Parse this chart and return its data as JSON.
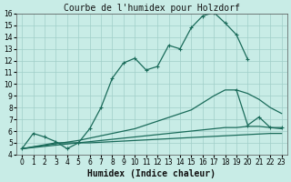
{
  "title": "Courbe de l'humidex pour Holzdorf",
  "xlabel": "Humidex (Indice chaleur)",
  "xlim": [
    -0.5,
    23.5
  ],
  "ylim": [
    4,
    16
  ],
  "xticks": [
    0,
    1,
    2,
    3,
    4,
    5,
    6,
    7,
    8,
    9,
    10,
    11,
    12,
    13,
    14,
    15,
    16,
    17,
    18,
    19,
    20,
    21,
    22,
    23
  ],
  "yticks": [
    4,
    5,
    6,
    7,
    8,
    9,
    10,
    11,
    12,
    13,
    14,
    15,
    16
  ],
  "bg_color": "#c8ece6",
  "grid_color": "#a0cfc8",
  "line_color": "#1a6b5a",
  "title_fontsize": 7,
  "tick_fontsize": 5.5,
  "label_fontsize": 7,
  "curve_main": {
    "x": [
      0,
      1,
      2,
      3,
      4,
      5,
      6,
      7,
      8,
      9,
      10,
      11,
      12,
      13,
      14,
      15,
      16,
      17,
      18,
      19,
      20
    ],
    "y": [
      4.5,
      5.8,
      5.5,
      5.1,
      4.5,
      5.0,
      6.2,
      8.0,
      10.5,
      11.8,
      12.2,
      11.2,
      11.5,
      13.3,
      13.0,
      14.8,
      15.8,
      16.1,
      15.2,
      14.2,
      12.1
    ]
  },
  "curve_tail": {
    "x": [
      19,
      20,
      21,
      22,
      23
    ],
    "y": [
      9.5,
      6.5,
      7.2,
      6.3,
      6.3
    ]
  },
  "curve_mid": {
    "x": [
      0,
      5,
      10,
      15,
      17,
      18,
      19,
      20,
      21,
      22,
      23
    ],
    "y": [
      4.5,
      5.2,
      6.2,
      7.8,
      9.0,
      9.5,
      9.5,
      9.2,
      8.7,
      8.0,
      7.5
    ]
  },
  "curve_low": {
    "x": [
      0,
      5,
      10,
      15,
      18,
      19,
      20,
      21,
      22,
      23
    ],
    "y": [
      4.5,
      5.0,
      5.5,
      6.0,
      6.3,
      6.3,
      6.4,
      6.4,
      6.3,
      6.2
    ]
  },
  "curve_flat": {
    "x": [
      0,
      3,
      4,
      5,
      6,
      7,
      8,
      9,
      10,
      11,
      12,
      13,
      14,
      15,
      16,
      17,
      18,
      19,
      20,
      21,
      22,
      23
    ],
    "y": [
      4.5,
      5.0,
      5.0,
      5.0,
      5.0,
      5.05,
      5.1,
      5.15,
      5.2,
      5.25,
      5.3,
      5.35,
      5.4,
      5.45,
      5.5,
      5.55,
      5.6,
      5.65,
      5.7,
      5.75,
      5.8,
      5.8
    ]
  }
}
